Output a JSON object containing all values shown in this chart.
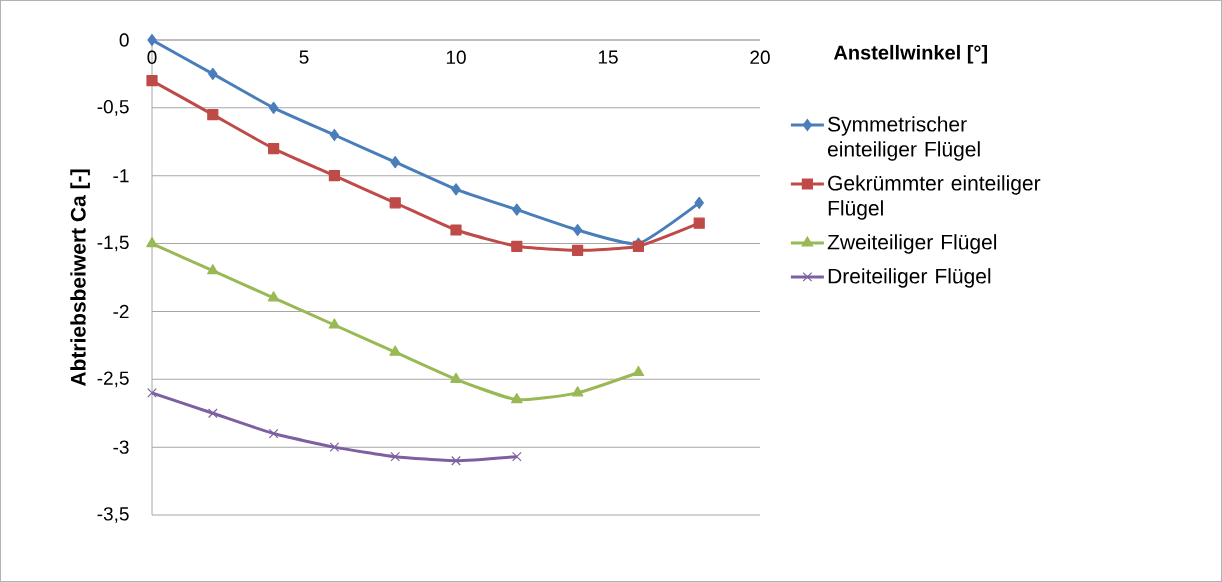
{
  "chart_data": {
    "type": "line",
    "xlabel": "Anstellwinkel [°]",
    "ylabel": "Abtriebsbeiwert Ca [-]",
    "xlim": [
      0,
      20
    ],
    "xticks": [
      0,
      5,
      10,
      15,
      20
    ],
    "ylim": [
      -3.5,
      0
    ],
    "yticks": [
      {
        "value": 0,
        "label": "0"
      },
      {
        "value": -0.5,
        "label": "-0,5"
      },
      {
        "value": -1,
        "label": "-1"
      },
      {
        "value": -1.5,
        "label": "-1,5"
      },
      {
        "value": -2,
        "label": "-2"
      },
      {
        "value": -2.5,
        "label": "-2,5"
      },
      {
        "value": -3,
        "label": "-3"
      },
      {
        "value": -3.5,
        "label": "-3,5"
      }
    ],
    "grid": "y",
    "legend": "right",
    "series": [
      {
        "name": "Symmetrischer einteiliger Flügel",
        "color": "#4a7ebb",
        "marker": "diamond",
        "x": [
          0,
          2,
          4,
          6,
          8,
          10,
          12,
          14,
          16,
          18
        ],
        "values": [
          0,
          -0.25,
          -0.5,
          -0.7,
          -0.9,
          -1.1,
          -1.25,
          -1.4,
          -1.5,
          -1.2
        ]
      },
      {
        "name": "Gekrümmter einteiliger Flügel",
        "color": "#be4b48",
        "marker": "square",
        "x": [
          0,
          2,
          4,
          6,
          8,
          10,
          12,
          14,
          16,
          18
        ],
        "values": [
          -0.3,
          -0.55,
          -0.8,
          -1.0,
          -1.2,
          -1.4,
          -1.52,
          -1.55,
          -1.52,
          -1.35
        ]
      },
      {
        "name": "Zweiteiliger Flügel",
        "color": "#98b954",
        "marker": "triangle",
        "x": [
          0,
          2,
          4,
          6,
          8,
          10,
          12,
          14,
          16
        ],
        "values": [
          -1.5,
          -1.7,
          -1.9,
          -2.1,
          -2.3,
          -2.5,
          -2.65,
          -2.6,
          -2.45
        ]
      },
      {
        "name": "Dreiteiliger Flügel",
        "color": "#7d60a0",
        "marker": "cross",
        "x": [
          0,
          2,
          4,
          6,
          8,
          10,
          12
        ],
        "values": [
          -2.6,
          -2.75,
          -2.9,
          -3.0,
          -3.07,
          -3.1,
          -3.07
        ]
      }
    ]
  }
}
